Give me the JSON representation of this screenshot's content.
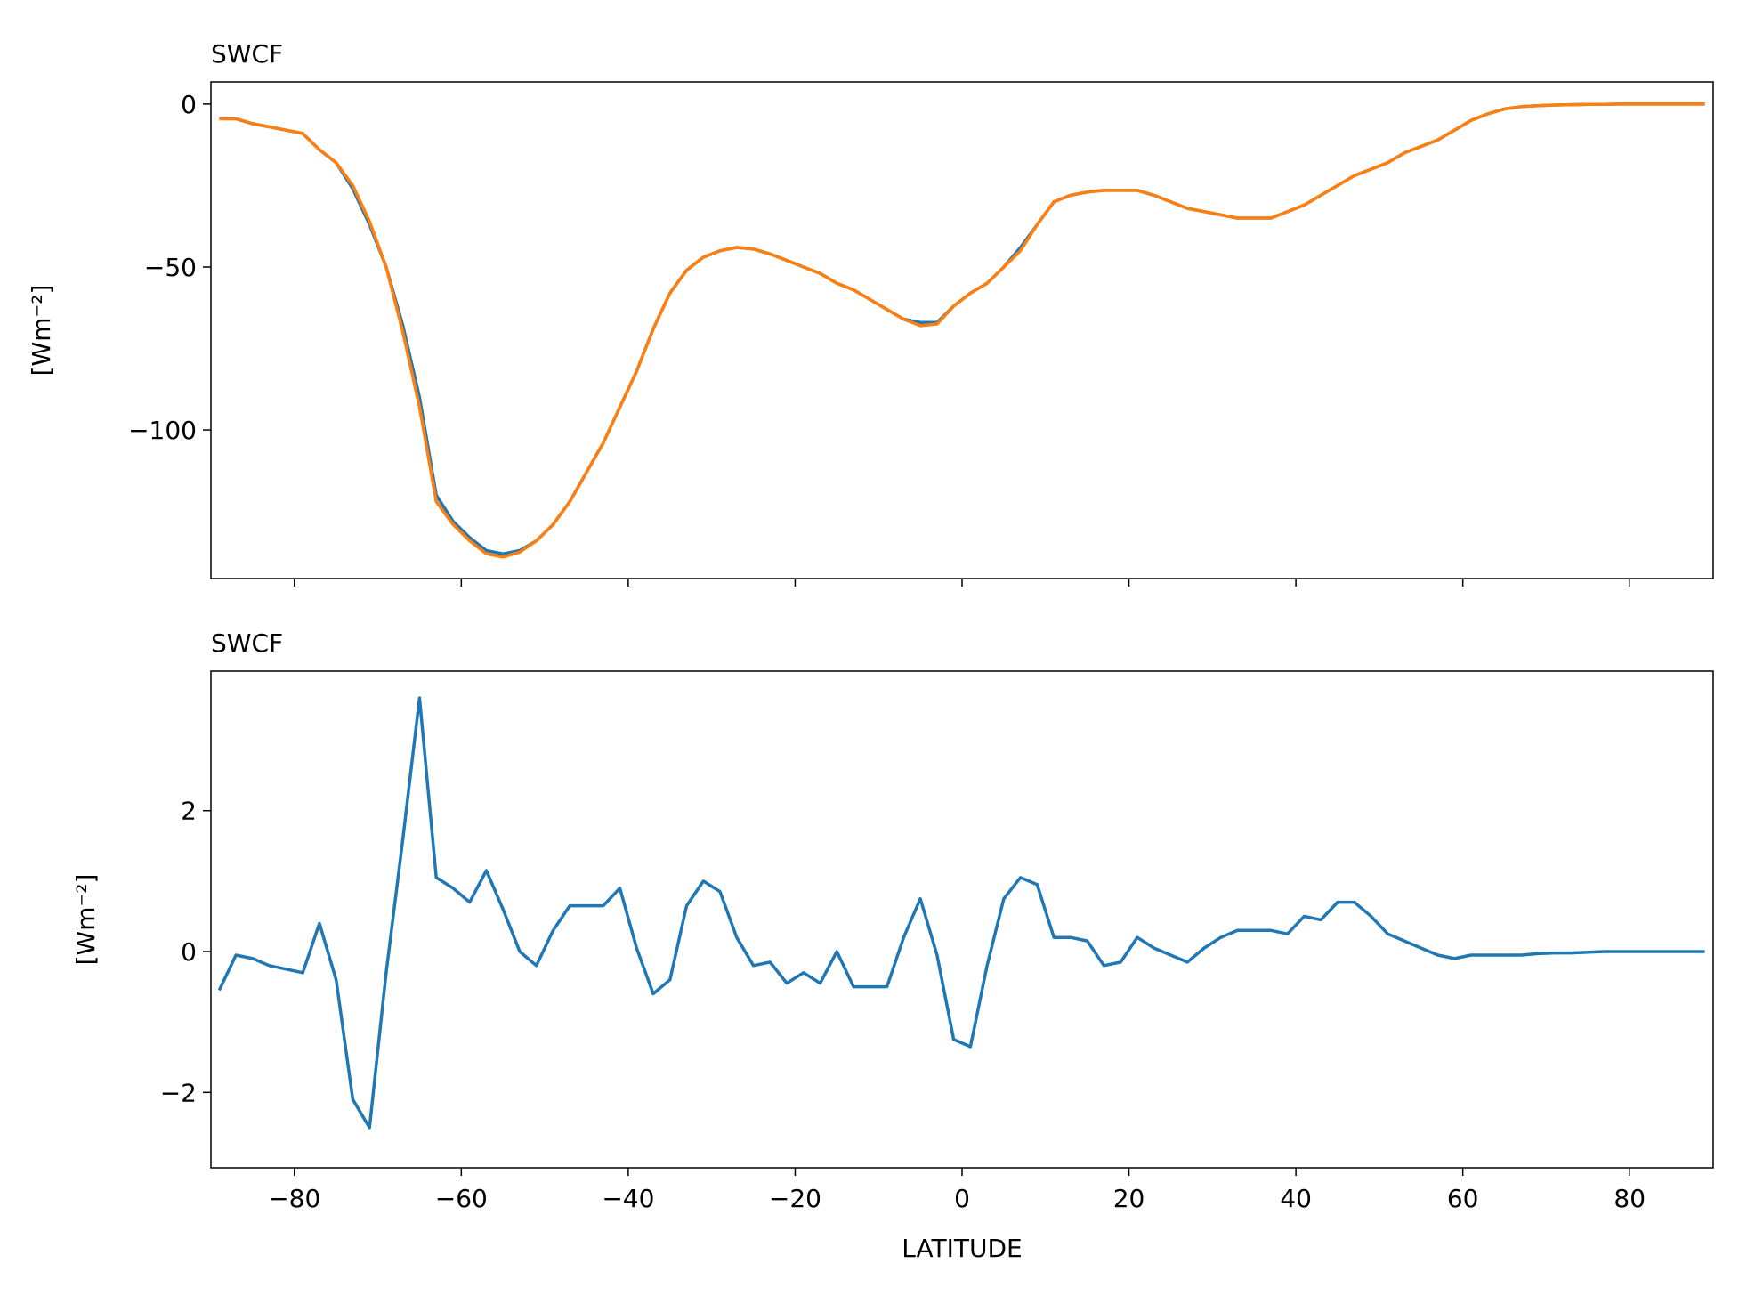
{
  "chart_data": [
    {
      "type": "line",
      "title": "SWCF",
      "ylabel": "[Wm⁻²]",
      "xtick_labels": false,
      "x": [
        -89,
        -87,
        -85,
        -83,
        -81,
        -79,
        -77,
        -75,
        -73,
        -71,
        -69,
        -67,
        -65,
        -63,
        -61,
        -59,
        -57,
        -55,
        -53,
        -51,
        -49,
        -47,
        -45,
        -43,
        -41,
        -39,
        -37,
        -35,
        -33,
        -31,
        -29,
        -27,
        -25,
        -23,
        -21,
        -19,
        -17,
        -15,
        -13,
        -11,
        -9,
        -7,
        -5,
        -3,
        -1,
        1,
        3,
        5,
        7,
        9,
        11,
        13,
        15,
        17,
        19,
        21,
        23,
        25,
        27,
        29,
        31,
        33,
        35,
        37,
        39,
        41,
        43,
        45,
        47,
        49,
        51,
        53,
        55,
        57,
        59,
        61,
        63,
        65,
        67,
        69,
        71,
        73,
        75,
        77,
        79,
        81,
        83,
        85,
        87,
        89
      ],
      "series": [
        {
          "color": "#1f77b4",
          "values": [
            -4.5,
            -4.5,
            -6,
            -7,
            -8,
            -9,
            -14,
            -18,
            -26,
            -37,
            -50,
            -68,
            -90,
            -120,
            -128,
            -133,
            -137,
            -138,
            -137,
            -134,
            -129,
            -122,
            -113,
            -104,
            -93,
            -82,
            -69,
            -58,
            -51,
            -47,
            -45,
            -44,
            -44.5,
            -46,
            -48,
            -50,
            -52,
            -55,
            -57,
            -60,
            -63,
            -66,
            -67,
            -67,
            -62,
            -58,
            -55,
            -50,
            -44,
            -37,
            -30,
            -28,
            -27,
            -26.5,
            -26.5,
            -26.5,
            -28,
            -30,
            -32,
            -33,
            -34,
            -35,
            -35,
            -35,
            -33,
            -31,
            -28,
            -25,
            -22,
            -20,
            -18,
            -15,
            -13,
            -11,
            -8,
            -5,
            -3,
            -1.5,
            -0.8,
            -0.5,
            -0.3,
            -0.2,
            -0.1,
            -0.1,
            0,
            0,
            0,
            0,
            0,
            0
          ]
        },
        {
          "color": "#ff7f0e",
          "values": [
            -4.5,
            -4.5,
            -6,
            -7,
            -8,
            -9,
            -14,
            -18,
            -25,
            -36,
            -50,
            -70,
            -93,
            -122,
            -129,
            -134,
            -138,
            -139,
            -137.5,
            -134,
            -129,
            -122,
            -113,
            -104,
            -93,
            -82,
            -69,
            -58,
            -51,
            -47,
            -45,
            -44,
            -44.5,
            -46,
            -48,
            -50,
            -52,
            -55,
            -57,
            -60,
            -63,
            -66,
            -68,
            -67.5,
            -62,
            -58,
            -55,
            -50,
            -45,
            -37,
            -30,
            -28,
            -27,
            -26.5,
            -26.5,
            -26.5,
            -28,
            -30,
            -32,
            -33,
            -34,
            -35,
            -35,
            -35,
            -33,
            -31,
            -28,
            -25,
            -22,
            -20,
            -18,
            -15,
            -13,
            -11,
            -8,
            -5,
            -3,
            -1.5,
            -0.8,
            -0.5,
            -0.3,
            -0.2,
            -0.1,
            -0.1,
            0,
            0,
            0,
            0,
            0,
            0
          ]
        }
      ],
      "xlim": [
        -90,
        90
      ],
      "xticks": [
        {
          "value": -80,
          "label": "−80"
        },
        {
          "value": -60,
          "label": "−60"
        },
        {
          "value": -40,
          "label": "−40"
        },
        {
          "value": -20,
          "label": "−20"
        },
        0,
        20,
        40,
        60,
        80
      ],
      "ylim": [
        -145.6,
        6.8
      ],
      "yticks": [
        {
          "value": -100,
          "label": "−100"
        },
        {
          "value": -50,
          "label": "−50"
        },
        0
      ]
    },
    {
      "type": "line",
      "title": "SWCF",
      "ylabel": "[Wm⁻²]",
      "xlabel": "LATITUDE",
      "xtick_labels": true,
      "x": [
        -89,
        -87,
        -85,
        -83,
        -81,
        -79,
        -77,
        -75,
        -73,
        -71,
        -69,
        -67,
        -65,
        -63,
        -61,
        -59,
        -57,
        -55,
        -53,
        -51,
        -49,
        -47,
        -45,
        -43,
        -41,
        -39,
        -37,
        -35,
        -33,
        -31,
        -29,
        -27,
        -25,
        -23,
        -21,
        -19,
        -17,
        -15,
        -13,
        -11,
        -9,
        -7,
        -5,
        -3,
        -1,
        1,
        3,
        5,
        7,
        9,
        11,
        13,
        15,
        17,
        19,
        21,
        23,
        25,
        27,
        29,
        31,
        33,
        35,
        37,
        39,
        41,
        43,
        45,
        47,
        49,
        51,
        53,
        55,
        57,
        59,
        61,
        63,
        65,
        67,
        69,
        71,
        73,
        75,
        77,
        79,
        81,
        83,
        85,
        87,
        89
      ],
      "series": [
        {
          "color": "#1f77b4",
          "values": [
            -0.55,
            -0.05,
            -0.1,
            -0.2,
            -0.25,
            -0.3,
            0.4,
            -0.4,
            -2.1,
            -2.5,
            -0.3,
            1.6,
            3.6,
            1.05,
            0.9,
            0.7,
            1.15,
            0.6,
            0,
            -0.2,
            0.3,
            0.65,
            0.65,
            0.65,
            0.9,
            0.05,
            -0.6,
            -0.4,
            0.65,
            1,
            0.85,
            0.2,
            -0.2,
            -0.15,
            -0.45,
            -0.3,
            -0.45,
            0,
            -0.5,
            -0.5,
            -0.5,
            0.2,
            0.75,
            -0.05,
            -1.25,
            -1.35,
            -0.2,
            0.75,
            1.05,
            0.95,
            0.2,
            0.2,
            0.15,
            -0.2,
            -0.15,
            0.2,
            0.05,
            -0.05,
            -0.15,
            0.05,
            0.2,
            0.3,
            0.3,
            0.3,
            0.25,
            0.5,
            0.45,
            0.7,
            0.7,
            0.5,
            0.25,
            0.15,
            0.05,
            -0.05,
            -0.1,
            -0.05,
            -0.05,
            -0.05,
            -0.05,
            -0.03,
            -0.02,
            -0.02,
            -0.01,
            0,
            0,
            0,
            0,
            0,
            0,
            0
          ]
        }
      ],
      "xlim": [
        -90,
        90
      ],
      "xticks": [
        {
          "value": -80,
          "label": "−80"
        },
        {
          "value": -60,
          "label": "−60"
        },
        {
          "value": -40,
          "label": "−40"
        },
        {
          "value": -20,
          "label": "−20"
        },
        0,
        20,
        40,
        60,
        80
      ],
      "ylim": [
        -3.07,
        3.98
      ],
      "yticks": [
        {
          "value": -2,
          "label": "−2"
        },
        0,
        2
      ]
    }
  ]
}
